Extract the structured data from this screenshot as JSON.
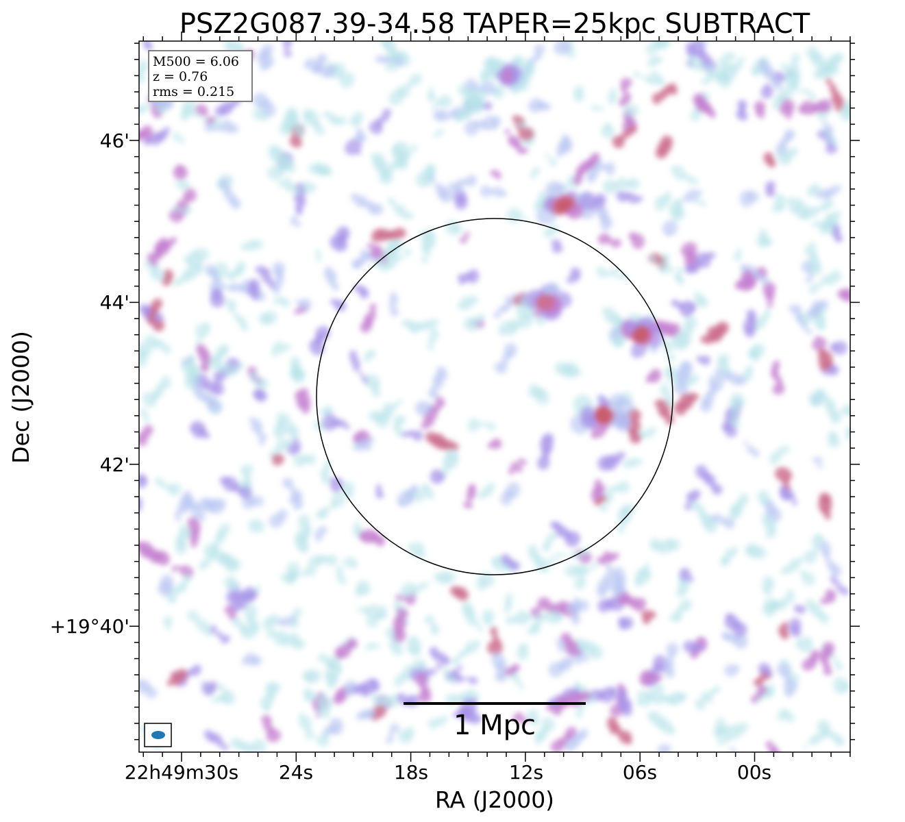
{
  "chart_data": {
    "type": "heatmap",
    "title": "PSZ2G087.39-34.58 TAPER=25kpc SUBTRACT",
    "xlabel": "RA (J2000)",
    "ylabel": "Dec (J2000)",
    "x_tick_labels": [
      "22h49m30s",
      "24s",
      "18s",
      "12s",
      "06s",
      "00s"
    ],
    "y_tick_labels": [
      "46'",
      "44'",
      "42'",
      "+19°40'"
    ],
    "info_box": [
      "M500 = 6.06",
      "z = 0.76",
      "rms = 0.215"
    ],
    "scale_bar_label": "1 Mpc",
    "colormap": [
      "#b8e3ea",
      "#b9c6f2",
      "#a692e8",
      "#c47fcf",
      "#cc6f8e",
      "#c85a6a"
    ],
    "emission_regions": [
      {
        "ra": "22h49m10s",
        "dec": "+19°45.2'",
        "level": 0.95
      },
      {
        "ra": "22h49m08s",
        "dec": "+19°42.6'",
        "level": 0.9
      },
      {
        "ra": "22h49m06s",
        "dec": "+19°43.6'",
        "level": 0.85
      },
      {
        "ra": "22h49m11s",
        "dec": "+19°44.0'",
        "level": 0.8
      },
      {
        "ra": "22h49m13s",
        "dec": "+19°46.8'",
        "level": 0.6
      }
    ]
  }
}
